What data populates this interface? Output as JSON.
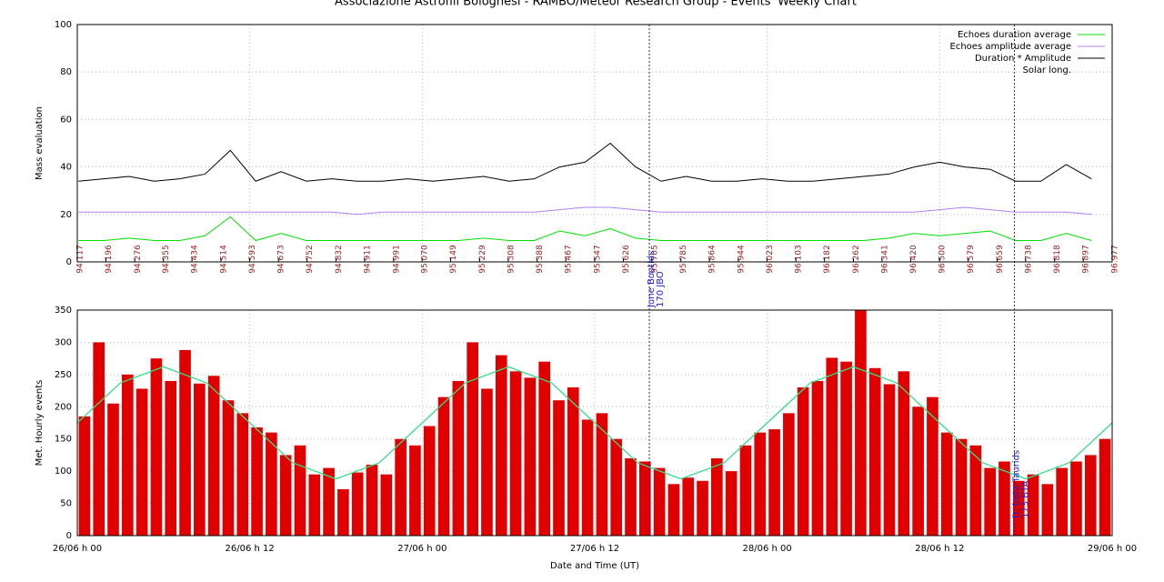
{
  "chart_data": [
    {
      "type": "line",
      "title": "Associazione Astrofili Bolognesi - RAMBO/Meteor Research Group - Events' Weekly Chart",
      "y_label": "Mass evaluation",
      "solar_long_label": "Solar long.",
      "solar_long_color": "#a02020",
      "x": [
        94.12,
        94.19,
        94.26,
        94.33,
        94.4,
        94.47,
        94.54,
        94.61,
        94.68,
        94.75,
        94.82,
        94.89,
        94.96,
        95.03,
        95.1,
        95.17,
        95.24,
        95.31,
        95.38,
        95.45,
        95.52,
        95.59,
        95.66,
        95.73,
        95.8,
        95.87,
        95.94,
        96.01,
        96.08,
        96.15,
        96.22,
        96.29,
        96.36,
        96.43,
        96.5,
        96.57,
        96.64,
        96.71,
        96.78,
        96.85,
        96.92
      ],
      "xlim": [
        94.117,
        96.977
      ],
      "xticks": [
        94.117,
        94.196,
        94.276,
        94.355,
        94.434,
        94.514,
        94.593,
        94.673,
        94.752,
        94.832,
        94.911,
        94.991,
        {
          "value": 95.07,
          "label": "95.070"
        },
        95.149,
        95.229,
        95.308,
        95.388,
        95.467,
        95.547,
        95.626,
        95.705,
        95.785,
        95.864,
        95.944,
        96.023,
        96.103,
        96.182,
        96.262,
        96.341,
        {
          "value": 96.42,
          "label": "96.420"
        },
        {
          "value": 96.5,
          "label": "96.500"
        },
        96.579,
        96.659,
        96.738,
        96.818,
        96.897,
        96.977
      ],
      "ylim": [
        0,
        100
      ],
      "yticks": [
        0,
        20,
        40,
        60,
        80,
        100
      ],
      "grid": true,
      "legend": "top-right",
      "series": [
        {
          "name": "Echoes duration average",
          "color": "#00e000",
          "values": [
            9,
            9,
            10,
            9,
            9,
            11,
            19,
            9,
            12,
            9,
            9,
            9,
            9,
            9,
            9,
            9,
            10,
            9,
            9,
            13,
            11,
            14,
            10,
            9,
            9,
            9,
            9,
            9,
            9,
            9,
            9,
            9,
            10,
            12,
            11,
            12,
            13,
            9,
            9,
            12,
            9
          ]
        },
        {
          "name": "Echoes amplitude average",
          "color": "#b080f0",
          "values": [
            21,
            21,
            21,
            21,
            21,
            21,
            21,
            21,
            21,
            21,
            21,
            20,
            21,
            21,
            21,
            21,
            21,
            21,
            21,
            22,
            23,
            23,
            22,
            21,
            21,
            21,
            21,
            21,
            21,
            21,
            21,
            21,
            21,
            21,
            22,
            23,
            22,
            21,
            21,
            21,
            20
          ]
        },
        {
          "name": "Duration * Amplitude",
          "color": "#000000",
          "values": [
            34,
            35,
            36,
            34,
            35,
            37,
            47,
            34,
            38,
            34,
            35,
            34,
            34,
            35,
            34,
            35,
            36,
            34,
            35,
            40,
            42,
            50,
            40,
            34,
            36,
            34,
            34,
            35,
            34,
            34,
            35,
            36,
            37,
            40,
            42,
            40,
            39,
            34,
            34,
            41,
            35
          ]
        }
      ]
    },
    {
      "type": "bar",
      "y_label": "Met. Hourly events",
      "x_label": "Date and Time (UT)",
      "color": "#e00000",
      "x": [
        0,
        1,
        2,
        3,
        4,
        5,
        6,
        7,
        8,
        9,
        10,
        11,
        12,
        13,
        14,
        15,
        16,
        17,
        18,
        19,
        20,
        21,
        22,
        23,
        24,
        25,
        26,
        27,
        28,
        29,
        30,
        31,
        32,
        33,
        34,
        35,
        36,
        37,
        38,
        39,
        40,
        41,
        42,
        43,
        44,
        45,
        46,
        47,
        48,
        49,
        50,
        51,
        52,
        53,
        54,
        55,
        56,
        57,
        58,
        59,
        60,
        61,
        62,
        63,
        64,
        65,
        66,
        67,
        68,
        69,
        70,
        71
      ],
      "values": [
        185,
        300,
        205,
        250,
        228,
        275,
        240,
        288,
        236,
        248,
        210,
        190,
        168,
        160,
        125,
        140,
        95,
        105,
        72,
        98,
        110,
        95,
        150,
        140,
        170,
        215,
        240,
        300,
        228,
        280,
        255,
        245,
        270,
        210,
        230,
        180,
        190,
        150,
        120,
        115,
        105,
        80,
        90,
        85,
        120,
        100,
        140,
        160,
        165,
        190,
        230,
        240,
        276,
        270,
        350,
        260,
        235,
        255,
        200,
        215,
        160,
        150,
        140,
        105,
        115,
        85,
        95,
        80,
        105,
        115,
        125,
        150
      ],
      "fit": {
        "color": "#33e08a",
        "x": [
          0,
          3,
          6,
          9,
          12,
          15,
          18,
          21,
          24,
          27,
          30,
          33,
          36,
          39,
          42,
          45,
          48,
          51,
          54,
          57,
          60,
          63,
          66,
          69,
          72
        ],
        "values": [
          175,
          237,
          262,
          237,
          175,
          113,
          88,
          113,
          175,
          237,
          262,
          237,
          175,
          113,
          88,
          113,
          175,
          237,
          262,
          237,
          175,
          113,
          88,
          113,
          175
        ]
      },
      "xlim": [
        0,
        72
      ],
      "xticks": [
        {
          "value": 0,
          "label": "26/06 h 00"
        },
        {
          "value": 12,
          "label": "26/06 h 12"
        },
        {
          "value": 24,
          "label": "27/06 h 00"
        },
        {
          "value": 36,
          "label": "27/06 h 12"
        },
        {
          "value": 48,
          "label": "28/06 h 00"
        },
        {
          "value": 60,
          "label": "28/06 h 12"
        },
        {
          "value": 72,
          "label": "29/06 h 00"
        }
      ],
      "ylim": [
        0,
        350
      ],
      "yticks": [
        0,
        50,
        100,
        150,
        200,
        250,
        300,
        350
      ],
      "grid": true,
      "annotations": [
        {
          "x": 39.8,
          "color": "#2020d0",
          "lines": [
            "June Bootids",
            "170 JBO"
          ]
        },
        {
          "x": 65.2,
          "color": "#2020d0",
          "lines": [
            "D. beta Taurids",
            "173 BTA"
          ]
        }
      ]
    }
  ]
}
